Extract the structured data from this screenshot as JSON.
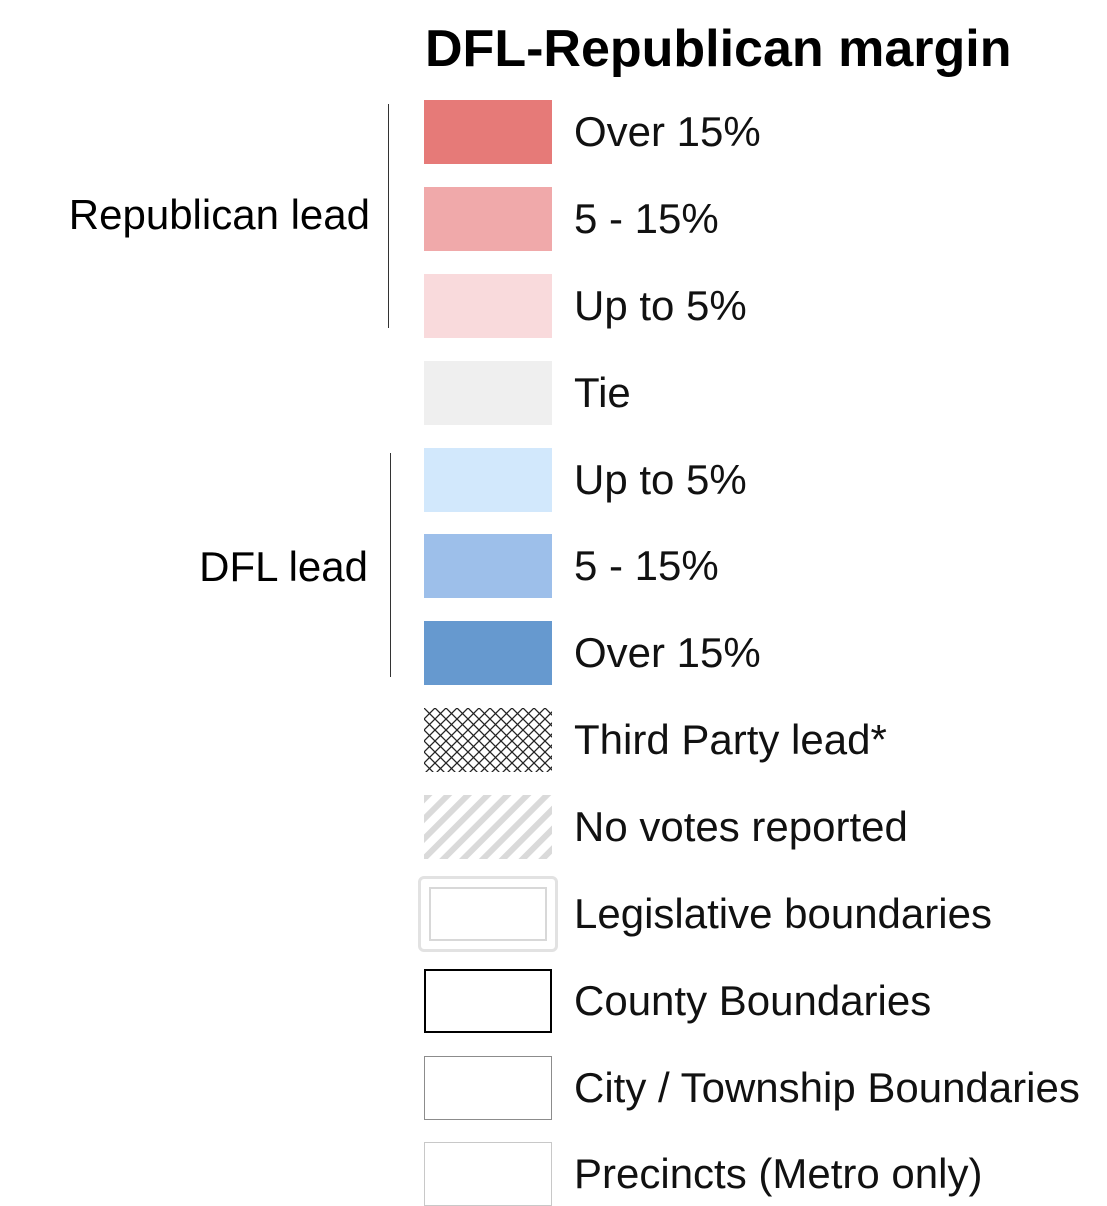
{
  "legend": {
    "title": "DFL-Republican margin",
    "groups": [
      {
        "label": "Republican lead"
      },
      {
        "label": "DFL lead"
      }
    ],
    "items": [
      {
        "label": "Over 15%",
        "color": "#e67a78",
        "style": "fill"
      },
      {
        "label": "5 - 15%",
        "color": "#f0a9aa",
        "style": "fill"
      },
      {
        "label": "Up to 5%",
        "color": "#f9dadc",
        "style": "fill"
      },
      {
        "label": "Tie",
        "color": "#efefef",
        "style": "fill"
      },
      {
        "label": "Up to 5%",
        "color": "#d2e8fc",
        "style": "fill"
      },
      {
        "label": "5 - 15%",
        "color": "#9dbfea",
        "style": "fill"
      },
      {
        "label": "Over 15%",
        "color": "#6699cf",
        "style": "fill"
      },
      {
        "label": "Third Party lead*",
        "color": "#222222",
        "style": "crosshatch"
      },
      {
        "label": "No votes reported",
        "color": "#dadada",
        "style": "diagonal-stripes"
      },
      {
        "label": "Legislative boundaries",
        "color": "#d8d8d8",
        "style": "double-outline"
      },
      {
        "label": "County Boundaries",
        "color": "#000000",
        "style": "outline-heavy"
      },
      {
        "label": "City / Township Boundaries",
        "color": "#8c8c8c",
        "style": "outline-medium"
      },
      {
        "label": "Precincts (Metro only)",
        "color": "#c8c8c8",
        "style": "outline-light"
      }
    ]
  }
}
